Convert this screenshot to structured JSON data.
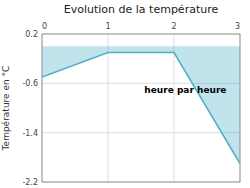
{
  "chart_data": {
    "type": "area",
    "title": "Evolution de la température",
    "xlabel": "heure par heure",
    "ylabel": "Température en °C",
    "x": [
      0,
      1,
      2,
      3
    ],
    "values": [
      -0.5,
      -0.1,
      -0.1,
      -1.9
    ],
    "color": "#4ab0c8",
    "xlim": [
      0,
      3
    ],
    "ylim": [
      -2.2,
      0.2
    ],
    "xticks": [
      0,
      1,
      2,
      3
    ],
    "yticks": [
      0.2,
      -0.6,
      -1.4,
      -2.2
    ],
    "grid": true
  }
}
